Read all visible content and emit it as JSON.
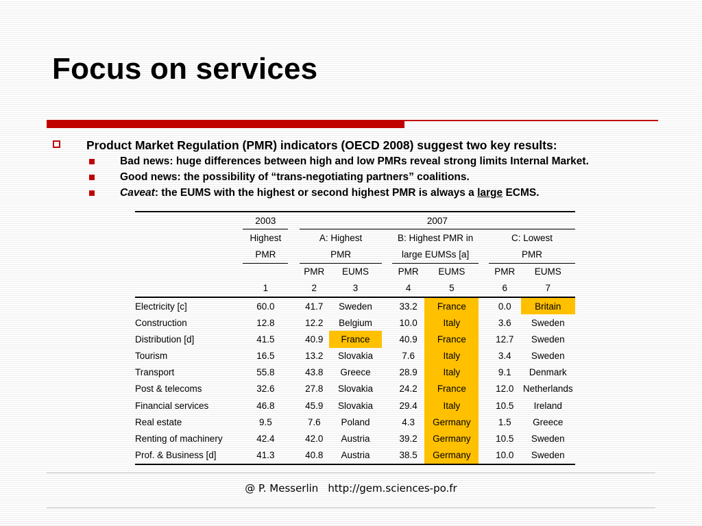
{
  "slide": {
    "title": "Focus on services",
    "bullet_main": "Product Market Regulation (PMR) indicators (OECD 2008) suggest two key results:",
    "sub1": "Bad news: huge differences between high and low PMRs reveal strong limits Internal Market.",
    "sub2": "Good news:  the possibility of “trans-negotiating partners” coalitions.",
    "sub3_italic": "Caveat",
    "sub3_a": ": the EUMS with the highest or second highest PMR is always a ",
    "sub3_underlined": "large",
    "sub3_b": " ECMS.",
    "accent_color": "#c00000",
    "highlight_color": "#ffc000"
  },
  "table": {
    "year_2003": "2003",
    "year_2007": "2007",
    "h_highest": "Highest",
    "h_pmr": "PMR",
    "grp_a_1": "A: Highest",
    "grp_a_2": "PMR",
    "grp_b_1": "B: Highest PMR in",
    "grp_b_2": "large EUMSs [a]",
    "grp_c_1": "C: Lowest",
    "grp_c_2": "PMR",
    "sub_pmr": "PMR",
    "sub_eums": "EUMS",
    "col_numbers": [
      "1",
      "2",
      "3",
      "4",
      "5",
      "6",
      "7"
    ],
    "rows": [
      {
        "sector": "Electricity [c]",
        "pmr2003": "60.0",
        "a_pmr": "41.7",
        "a_eums": "Sweden",
        "b_pmr": "33.2",
        "b_eums": "France",
        "c_pmr": "0.0",
        "c_eums": "Britain"
      },
      {
        "sector": "Construction",
        "pmr2003": "12.8",
        "a_pmr": "12.2",
        "a_eums": "Belgium",
        "b_pmr": "10.0",
        "b_eums": "Italy",
        "c_pmr": "3.6",
        "c_eums": "Sweden"
      },
      {
        "sector": "Distribution [d]",
        "pmr2003": "41.5",
        "a_pmr": "40.9",
        "a_eums": "France",
        "b_pmr": "40.9",
        "b_eums": "France",
        "c_pmr": "12.7",
        "c_eums": "Sweden"
      },
      {
        "sector": "Tourism",
        "pmr2003": "16.5",
        "a_pmr": "13.2",
        "a_eums": "Slovakia",
        "b_pmr": "7.6",
        "b_eums": "Italy",
        "c_pmr": "3.4",
        "c_eums": "Sweden"
      },
      {
        "sector": "Transport",
        "pmr2003": "55.8",
        "a_pmr": "43.8",
        "a_eums": "Greece",
        "b_pmr": "28.9",
        "b_eums": "Italy",
        "c_pmr": "9.1",
        "c_eums": "Denmark"
      },
      {
        "sector": "Post & telecoms",
        "pmr2003": "32.6",
        "a_pmr": "27.8",
        "a_eums": "Slovakia",
        "b_pmr": "24.2",
        "b_eums": "France",
        "c_pmr": "12.0",
        "c_eums": "Netherlands"
      },
      {
        "sector": "Financial services",
        "pmr2003": "46.8",
        "a_pmr": "45.9",
        "a_eums": "Slovakia",
        "b_pmr": "29.4",
        "b_eums": "Italy",
        "c_pmr": "10.5",
        "c_eums": "Ireland"
      },
      {
        "sector": "Real estate",
        "pmr2003": "9.5",
        "a_pmr": "7.6",
        "a_eums": "Poland",
        "b_pmr": "4.3",
        "b_eums": "Germany",
        "c_pmr": "1.5",
        "c_eums": "Greece"
      },
      {
        "sector": "Renting of machinery",
        "pmr2003": "42.4",
        "a_pmr": "42.0",
        "a_eums": "Austria",
        "b_pmr": "39.2",
        "b_eums": "Germany",
        "c_pmr": "10.5",
        "c_eums": "Sweden"
      },
      {
        "sector": "Prof. & Business [d]",
        "pmr2003": "41.3",
        "a_pmr": "40.8",
        "a_eums": "Austria",
        "b_pmr": "38.5",
        "b_eums": "Germany",
        "c_pmr": "10.0",
        "c_eums": "Sweden"
      }
    ]
  },
  "footer": {
    "author": "@ P. Messerlin",
    "url": "http://gem.sciences-po.fr"
  }
}
